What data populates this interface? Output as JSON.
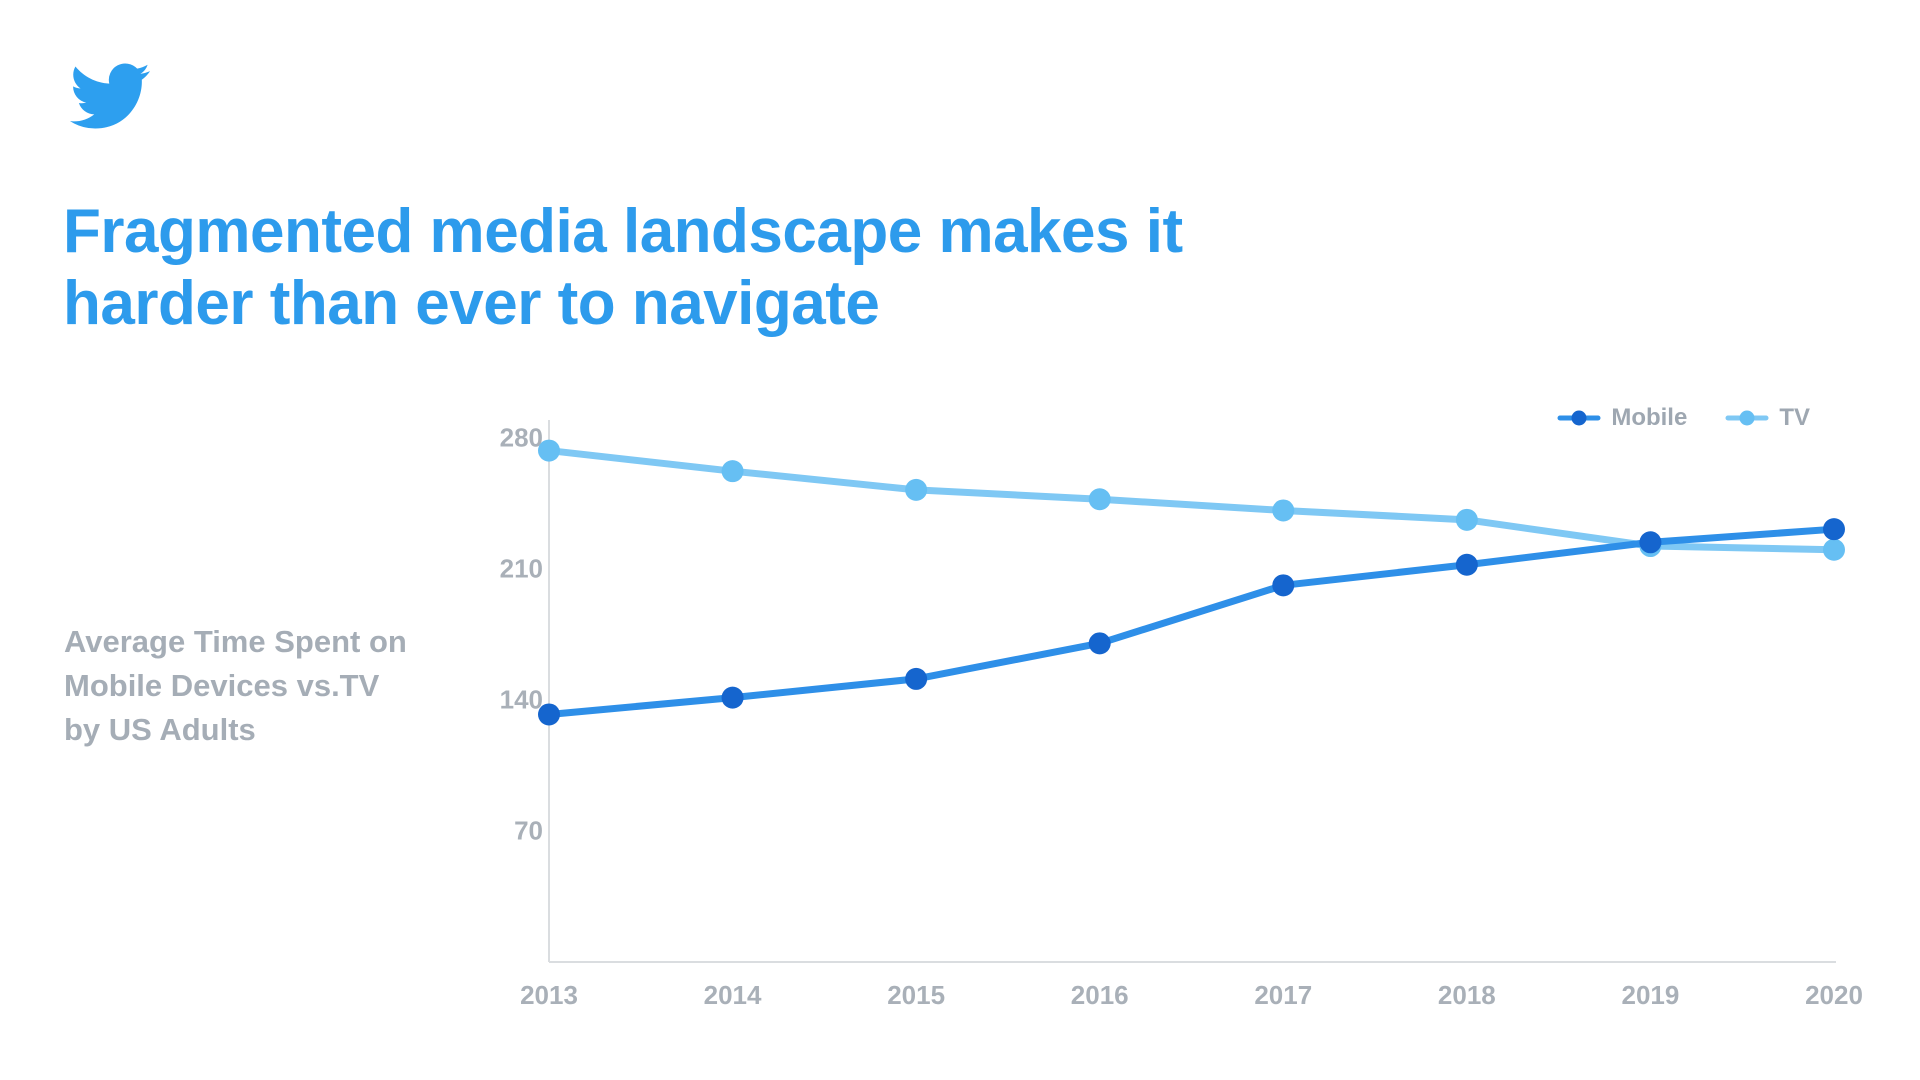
{
  "slide": {
    "background": "#ffffff",
    "logo": {
      "icon": "twitter-bird-icon",
      "color": "#2D9FEF"
    },
    "title": {
      "lines": [
        "Fragmented media landscape makes it",
        "harder than ever to navigate"
      ],
      "color": "#2D9BEC"
    },
    "chart_label": {
      "lines": [
        "Average Time Spent on",
        "Mobile Devices vs.TV",
        "by US Adults"
      ],
      "color": "#A5ADB6"
    }
  },
  "legend": {
    "position": "top-right",
    "items": [
      {
        "label": "Mobile",
        "point_color": "#1565CE",
        "line_color": "#2E8FE8"
      },
      {
        "label": "TV",
        "point_color": "#66BFF3",
        "line_color": "#7FC8F4"
      }
    ],
    "text_color": "#9EA7B1"
  },
  "chart_data": {
    "type": "line",
    "title": "Average Time Spent on Mobile Devices vs.TV by US Adults",
    "x": [
      "2013",
      "2014",
      "2015",
      "2016",
      "2017",
      "2018",
      "2019",
      "2020"
    ],
    "series": [
      {
        "name": "Mobile",
        "values": [
          132,
          141,
          151,
          170,
          201,
          212,
          224,
          231
        ],
        "line_color": "#2E8FE8",
        "point_color": "#1565CE"
      },
      {
        "name": "TV",
        "values": [
          273,
          262,
          252,
          247,
          241,
          236,
          222,
          220
        ],
        "line_color": "#7FC8F4",
        "point_color": "#66BFF3"
      }
    ],
    "xlabel": "",
    "ylabel": "",
    "y_ticks": [
      70,
      140,
      210,
      280
    ],
    "ylim": [
      0,
      290
    ],
    "grid": false,
    "legend_position": "top-right",
    "axis_color": "#DADDE0",
    "tick_label_color": "#A9B0B8"
  }
}
